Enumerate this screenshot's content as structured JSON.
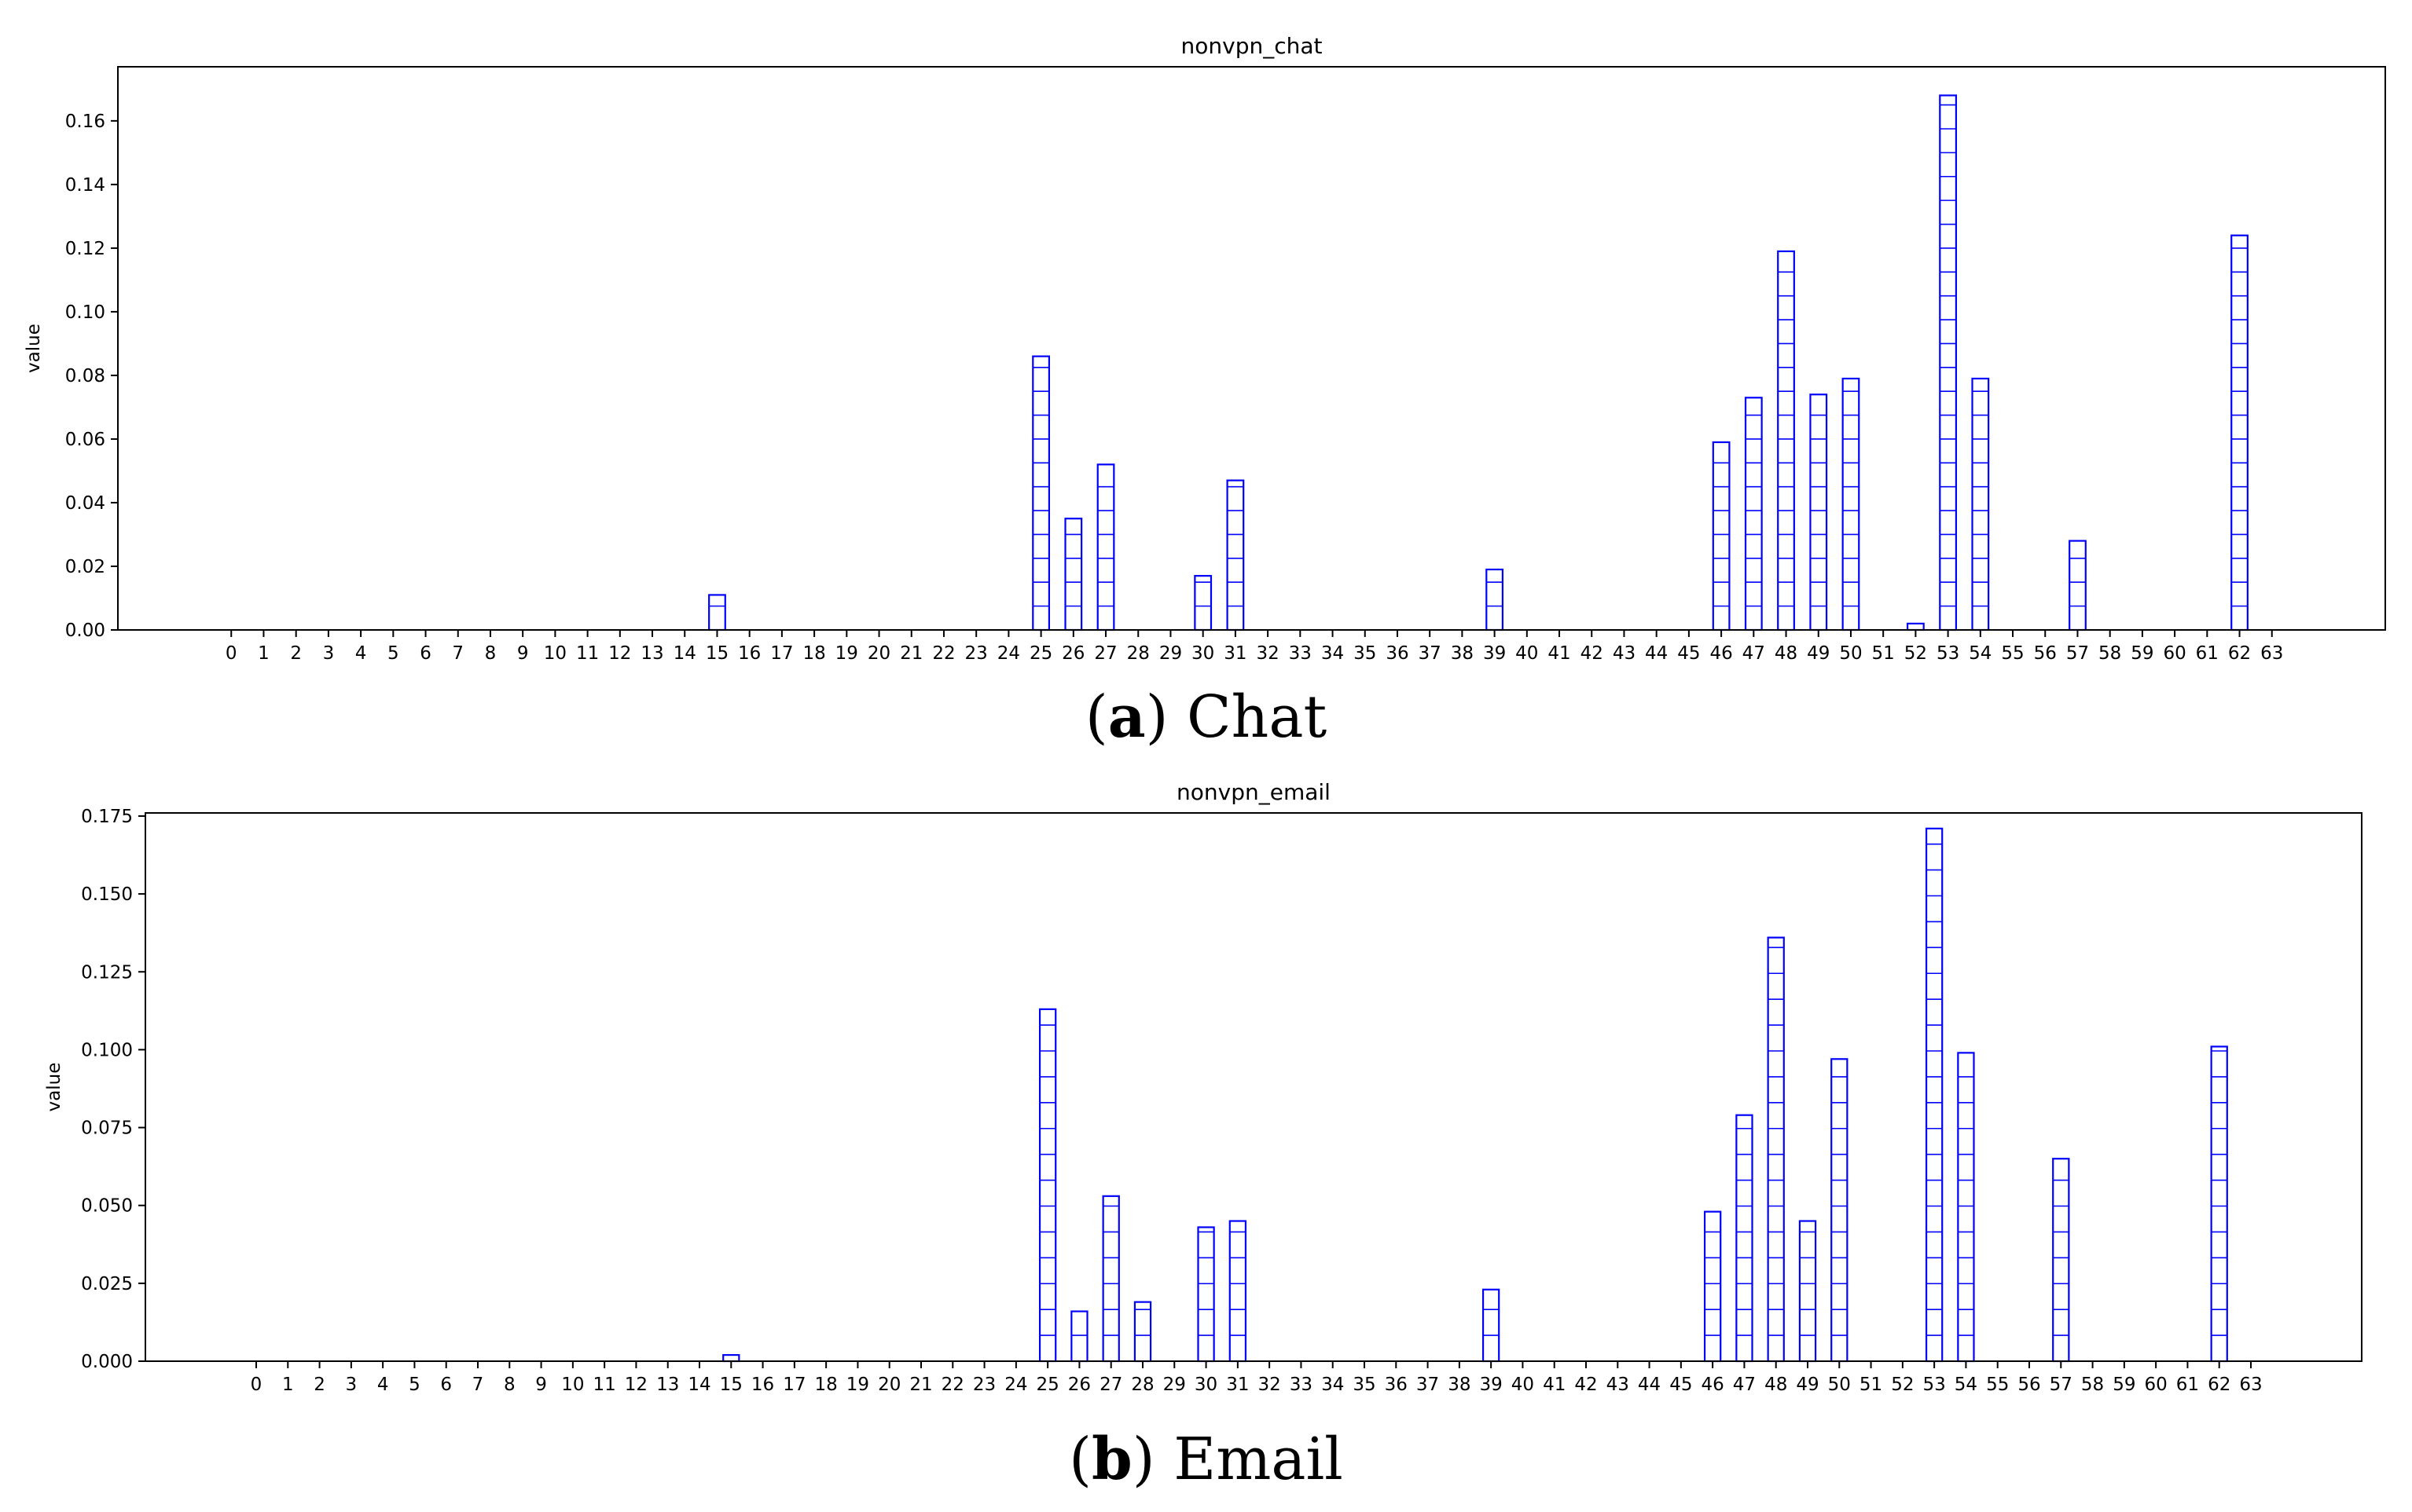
{
  "captions": [
    {
      "letter": "a",
      "text": "Chat"
    },
    {
      "letter": "b",
      "text": "Email"
    }
  ],
  "chart_data": [
    {
      "type": "bar",
      "title": "nonvpn_chat",
      "xlabel": "",
      "ylabel": "value",
      "ylim": [
        0,
        0.177
      ],
      "yticks": [
        0.0,
        0.02,
        0.04,
        0.06,
        0.08,
        0.1,
        0.12,
        0.14,
        0.16
      ],
      "ytick_labels": [
        "0.00",
        "0.02",
        "0.04",
        "0.06",
        "0.08",
        "0.10",
        "0.12",
        "0.14",
        "0.16"
      ],
      "xlim": [
        -3.5,
        66.5
      ],
      "categories": [
        "0",
        "1",
        "2",
        "3",
        "4",
        "5",
        "6",
        "7",
        "8",
        "9",
        "10",
        "11",
        "12",
        "13",
        "14",
        "15",
        "16",
        "17",
        "18",
        "19",
        "20",
        "21",
        "22",
        "23",
        "24",
        "25",
        "26",
        "27",
        "28",
        "29",
        "30",
        "31",
        "32",
        "33",
        "34",
        "35",
        "36",
        "37",
        "38",
        "39",
        "40",
        "41",
        "42",
        "43",
        "44",
        "45",
        "46",
        "47",
        "48",
        "49",
        "50",
        "51",
        "52",
        "53",
        "54",
        "55",
        "56",
        "57",
        "58",
        "59",
        "60",
        "61",
        "62",
        "63"
      ],
      "values": [
        0,
        0,
        0,
        0,
        0,
        0,
        0,
        0,
        0,
        0,
        0,
        0,
        0,
        0,
        0,
        0.011,
        0,
        0,
        0,
        0,
        0,
        0,
        0,
        0,
        0,
        0.086,
        0.035,
        0.052,
        0,
        0,
        0.017,
        0.047,
        0,
        0,
        0,
        0,
        0,
        0,
        0,
        0.019,
        0,
        0,
        0,
        0,
        0,
        0,
        0.059,
        0.073,
        0.119,
        0.074,
        0.079,
        0,
        0.002,
        0.168,
        0.079,
        0,
        0,
        0.028,
        0,
        0,
        0,
        0,
        0.124,
        0
      ],
      "hatch_step": 0.0075,
      "bar_width": 0.5,
      "bar_color": "#0000ff",
      "grid": false,
      "legend": "none"
    },
    {
      "type": "bar",
      "title": "nonvpn_email",
      "xlabel": "",
      "ylabel": "value",
      "ylim": [
        0,
        0.176
      ],
      "yticks": [
        0.0,
        0.025,
        0.05,
        0.075,
        0.1,
        0.125,
        0.15,
        0.175
      ],
      "ytick_labels": [
        "0.000",
        "0.025",
        "0.050",
        "0.075",
        "0.100",
        "0.125",
        "0.150",
        "0.175"
      ],
      "xlim": [
        -3.5,
        66.5
      ],
      "categories": [
        "0",
        "1",
        "2",
        "3",
        "4",
        "5",
        "6",
        "7",
        "8",
        "9",
        "10",
        "11",
        "12",
        "13",
        "14",
        "15",
        "16",
        "17",
        "18",
        "19",
        "20",
        "21",
        "22",
        "23",
        "24",
        "25",
        "26",
        "27",
        "28",
        "29",
        "30",
        "31",
        "32",
        "33",
        "34",
        "35",
        "36",
        "37",
        "38",
        "39",
        "40",
        "41",
        "42",
        "43",
        "44",
        "45",
        "46",
        "47",
        "48",
        "49",
        "50",
        "51",
        "52",
        "53",
        "54",
        "55",
        "56",
        "57",
        "58",
        "59",
        "60",
        "61",
        "62",
        "63"
      ],
      "values": [
        0,
        0,
        0,
        0,
        0,
        0,
        0,
        0,
        0,
        0,
        0,
        0,
        0,
        0,
        0,
        0.002,
        0,
        0,
        0,
        0,
        0,
        0,
        0,
        0,
        0,
        0.113,
        0.016,
        0.053,
        0.019,
        0,
        0.043,
        0.045,
        0,
        0,
        0,
        0,
        0,
        0,
        0,
        0.023,
        0,
        0,
        0,
        0,
        0,
        0,
        0.048,
        0.079,
        0.136,
        0.045,
        0.097,
        0,
        0,
        0.171,
        0.099,
        0,
        0,
        0.065,
        0,
        0,
        0,
        0,
        0.101,
        0
      ],
      "hatch_step": 0.0083,
      "bar_width": 0.5,
      "bar_color": "#0000ff",
      "grid": false,
      "legend": "none"
    }
  ]
}
